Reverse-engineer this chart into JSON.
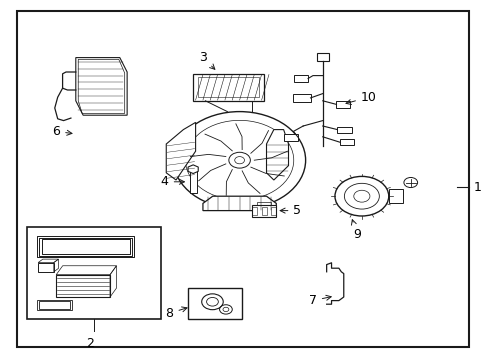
{
  "bg_color": "#ffffff",
  "line_color": "#1a1a1a",
  "text_color": "#000000",
  "fig_width": 4.89,
  "fig_height": 3.6,
  "dpi": 100,
  "border": [
    0.035,
    0.035,
    0.925,
    0.935
  ],
  "label_positions": {
    "1": [
      0.968,
      0.48,
      0.935,
      0.48
    ],
    "2": [
      0.185,
      0.065,
      0.185,
      0.1
    ],
    "3": [
      0.415,
      0.84,
      0.445,
      0.8
    ],
    "4": [
      0.345,
      0.495,
      0.385,
      0.495
    ],
    "5": [
      0.6,
      0.415,
      0.565,
      0.415
    ],
    "6": [
      0.115,
      0.635,
      0.155,
      0.628
    ],
    "7": [
      0.648,
      0.165,
      0.685,
      0.178
    ],
    "8": [
      0.355,
      0.13,
      0.39,
      0.148
    ],
    "9": [
      0.73,
      0.368,
      0.718,
      0.4
    ],
    "10": [
      0.738,
      0.73,
      0.7,
      0.71
    ]
  }
}
